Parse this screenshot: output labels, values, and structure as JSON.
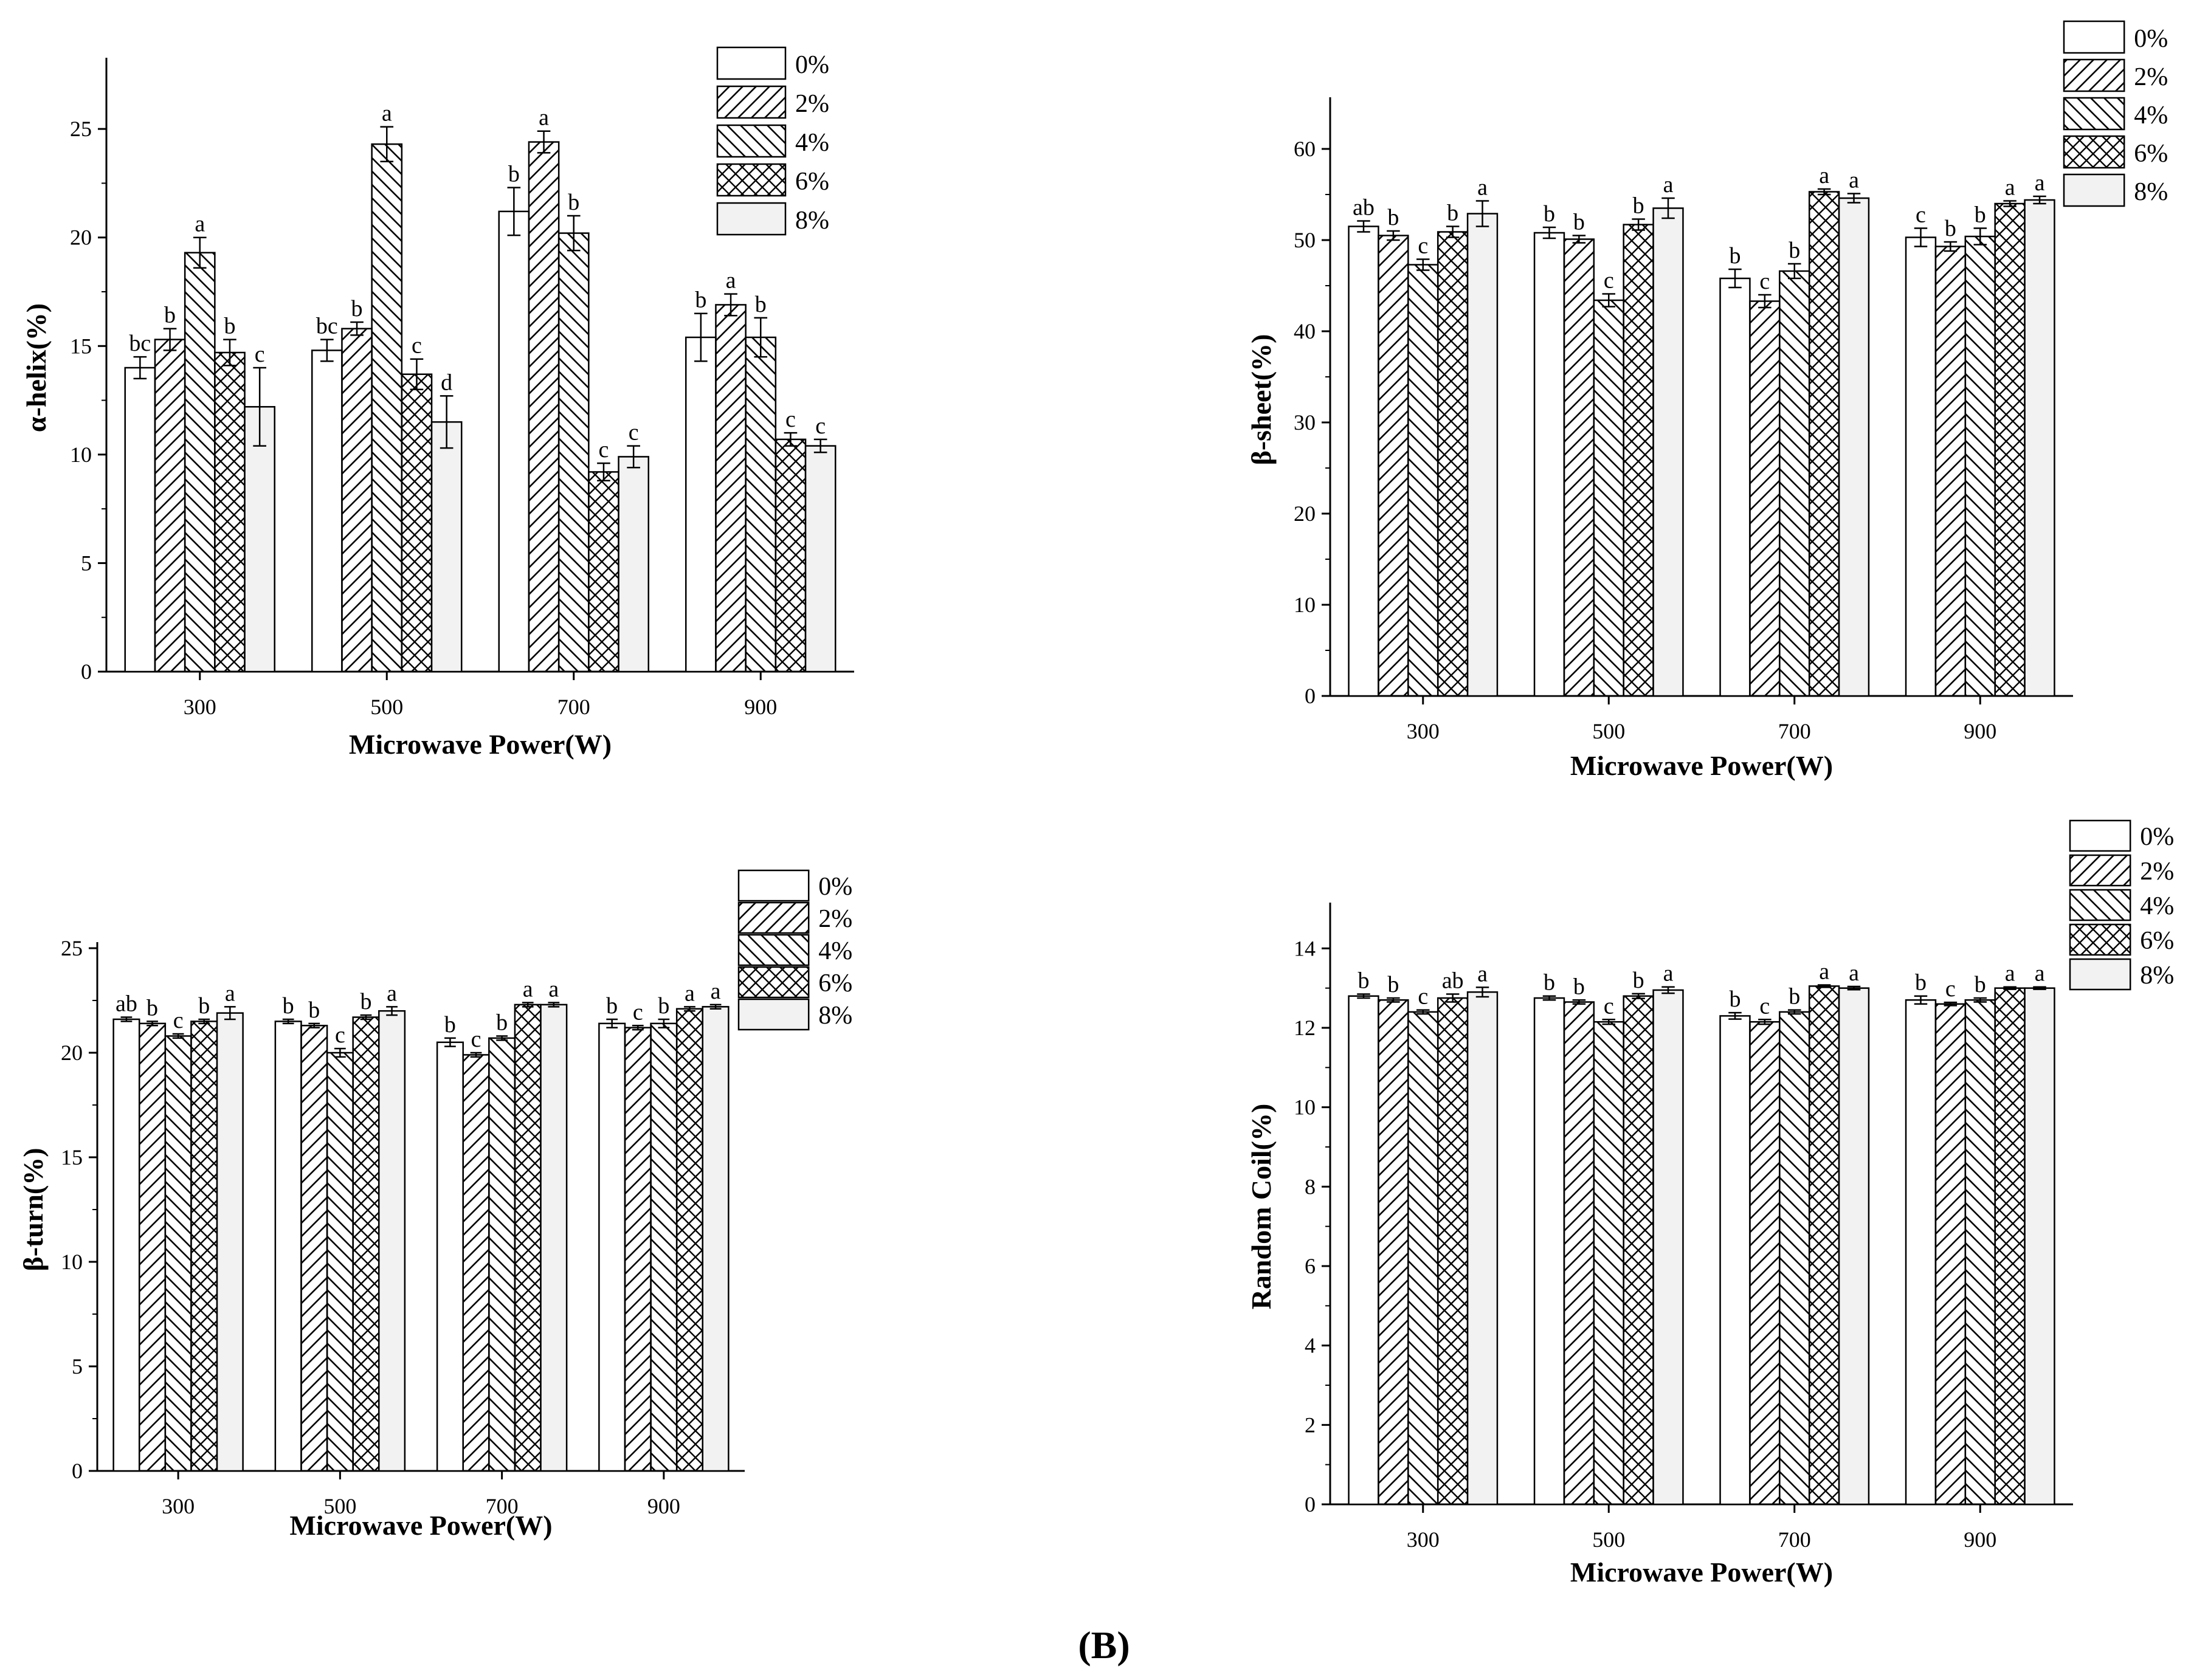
{
  "figure_label": "(B)",
  "palette": {
    "bar_fill": "#ffffff",
    "bar_8_fill": "#f2f2f2",
    "stroke": "#000000"
  },
  "chart_data": [
    {
      "id": "alpha-helix",
      "type": "bar",
      "categories": [
        "300",
        "500",
        "700",
        "900"
      ],
      "xlabel": "Microwave Power(W)",
      "ylabel": "α-helix(%)",
      "ylim": [
        0,
        28
      ],
      "yticks": [
        0,
        5,
        10,
        15,
        20,
        25
      ],
      "legend_position": "top-right",
      "series": [
        {
          "name": "0%",
          "pattern": "none",
          "values": [
            14.0,
            14.8,
            21.2,
            15.4
          ],
          "errors": [
            0.5,
            0.5,
            1.1,
            1.1
          ],
          "labels": [
            "bc",
            "bc",
            "b",
            "b"
          ]
        },
        {
          "name": "2%",
          "pattern": "hatch-fwd",
          "values": [
            15.3,
            15.8,
            24.4,
            16.9
          ],
          "errors": [
            0.5,
            0.3,
            0.5,
            0.5
          ],
          "labels": [
            "b",
            "b",
            "a",
            "a"
          ]
        },
        {
          "name": "4%",
          "pattern": "hatch-back",
          "values": [
            19.3,
            24.3,
            20.2,
            15.4
          ],
          "errors": [
            0.7,
            0.8,
            0.8,
            0.9
          ],
          "labels": [
            "a",
            "a",
            "b",
            "b"
          ]
        },
        {
          "name": "6%",
          "pattern": "cross",
          "values": [
            14.7,
            13.7,
            9.2,
            10.7
          ],
          "errors": [
            0.6,
            0.7,
            0.4,
            0.3
          ],
          "labels": [
            "b",
            "c",
            "c",
            "c"
          ]
        },
        {
          "name": "8%",
          "pattern": "light",
          "values": [
            12.2,
            11.5,
            9.9,
            10.4
          ],
          "errors": [
            1.8,
            1.2,
            0.5,
            0.3
          ],
          "labels": [
            "c",
            "d",
            "c",
            "c"
          ]
        }
      ]
    },
    {
      "id": "beta-sheet",
      "type": "bar",
      "categories": [
        "300",
        "500",
        "700",
        "900"
      ],
      "xlabel": "Microwave Power(W)",
      "ylabel": "β-sheet(%)",
      "ylim": [
        0,
        65
      ],
      "yticks": [
        0,
        10,
        20,
        30,
        40,
        50,
        60
      ],
      "legend_position": "top-right",
      "series": [
        {
          "name": "0%",
          "pattern": "none",
          "values": [
            51.5,
            50.8,
            45.8,
            50.3
          ],
          "errors": [
            0.6,
            0.6,
            1.0,
            1.0
          ],
          "labels": [
            "ab",
            "b",
            "b",
            "c"
          ]
        },
        {
          "name": "2%",
          "pattern": "hatch-fwd",
          "values": [
            50.5,
            50.1,
            43.3,
            49.3
          ],
          "errors": [
            0.5,
            0.4,
            0.7,
            0.5
          ],
          "labels": [
            "b",
            "b",
            "c",
            "b"
          ]
        },
        {
          "name": "4%",
          "pattern": "hatch-back",
          "values": [
            47.3,
            43.4,
            46.6,
            50.4
          ],
          "errors": [
            0.6,
            0.7,
            0.8,
            0.9
          ],
          "labels": [
            "c",
            "c",
            "b",
            "b"
          ]
        },
        {
          "name": "6%",
          "pattern": "cross",
          "values": [
            50.9,
            51.7,
            55.3,
            54.0
          ],
          "errors": [
            0.6,
            0.6,
            0.3,
            0.3
          ],
          "labels": [
            "b",
            "b",
            "a",
            "a"
          ]
        },
        {
          "name": "8%",
          "pattern": "light",
          "values": [
            52.9,
            53.5,
            54.6,
            54.4
          ],
          "errors": [
            1.4,
            1.1,
            0.5,
            0.4
          ],
          "labels": [
            "a",
            "a",
            "a",
            "a"
          ]
        }
      ]
    },
    {
      "id": "beta-turn",
      "type": "bar",
      "categories": [
        "300",
        "500",
        "700",
        "900"
      ],
      "xlabel": "Microwave Power(W)",
      "ylabel": "β-turn(%)",
      "ylim": [
        0,
        25
      ],
      "yticks": [
        0,
        5,
        10,
        15,
        20,
        25
      ],
      "legend_position": "top-right",
      "series": [
        {
          "name": "0%",
          "pattern": "none",
          "values": [
            21.6,
            21.5,
            20.5,
            21.4
          ],
          "errors": [
            0.1,
            0.1,
            0.2,
            0.2
          ],
          "labels": [
            "ab",
            "b",
            "b",
            "b"
          ]
        },
        {
          "name": "2%",
          "pattern": "hatch-fwd",
          "values": [
            21.4,
            21.3,
            19.9,
            21.2
          ],
          "errors": [
            0.1,
            0.1,
            0.1,
            0.1
          ],
          "labels": [
            "b",
            "b",
            "c",
            "c"
          ]
        },
        {
          "name": "4%",
          "pattern": "hatch-back",
          "values": [
            20.8,
            20.0,
            20.7,
            21.4
          ],
          "errors": [
            0.1,
            0.2,
            0.1,
            0.2
          ],
          "labels": [
            "c",
            "c",
            "b",
            "b"
          ]
        },
        {
          "name": "6%",
          "pattern": "cross",
          "values": [
            21.5,
            21.7,
            22.3,
            22.1
          ],
          "errors": [
            0.1,
            0.1,
            0.1,
            0.1
          ],
          "labels": [
            "b",
            "b",
            "a",
            "a"
          ]
        },
        {
          "name": "8%",
          "pattern": "light",
          "values": [
            21.9,
            22.0,
            22.3,
            22.2
          ],
          "errors": [
            0.3,
            0.2,
            0.1,
            0.1
          ],
          "labels": [
            "a",
            "a",
            "a",
            "a"
          ]
        }
      ]
    },
    {
      "id": "random-coil",
      "type": "bar",
      "categories": [
        "300",
        "500",
        "700",
        "900"
      ],
      "xlabel": "Microwave Power(W)",
      "ylabel": "Random Coil(%)",
      "ylim": [
        0,
        15
      ],
      "yticks": [
        0,
        2,
        4,
        6,
        8,
        10,
        12,
        14
      ],
      "legend_position": "top-right",
      "series": [
        {
          "name": "0%",
          "pattern": "none",
          "values": [
            12.8,
            12.75,
            12.3,
            12.7
          ],
          "errors": [
            0.05,
            0.05,
            0.08,
            0.1
          ],
          "labels": [
            "b",
            "b",
            "b",
            "b"
          ]
        },
        {
          "name": "2%",
          "pattern": "hatch-fwd",
          "values": [
            12.7,
            12.65,
            12.15,
            12.6
          ],
          "errors": [
            0.05,
            0.05,
            0.06,
            0.04
          ],
          "labels": [
            "b",
            "b",
            "c",
            "c"
          ]
        },
        {
          "name": "4%",
          "pattern": "hatch-back",
          "values": [
            12.4,
            12.15,
            12.4,
            12.7
          ],
          "errors": [
            0.05,
            0.06,
            0.05,
            0.05
          ],
          "labels": [
            "c",
            "c",
            "b",
            "b"
          ]
        },
        {
          "name": "6%",
          "pattern": "cross",
          "values": [
            12.75,
            12.8,
            13.05,
            13.0
          ],
          "errors": [
            0.1,
            0.06,
            0.03,
            0.03
          ],
          "labels": [
            "ab",
            "b",
            "a",
            "a"
          ]
        },
        {
          "name": "8%",
          "pattern": "light",
          "values": [
            12.9,
            12.95,
            13.0,
            13.0
          ],
          "errors": [
            0.12,
            0.08,
            0.04,
            0.03
          ],
          "labels": [
            "a",
            "a",
            "a",
            "a"
          ]
        }
      ]
    }
  ]
}
